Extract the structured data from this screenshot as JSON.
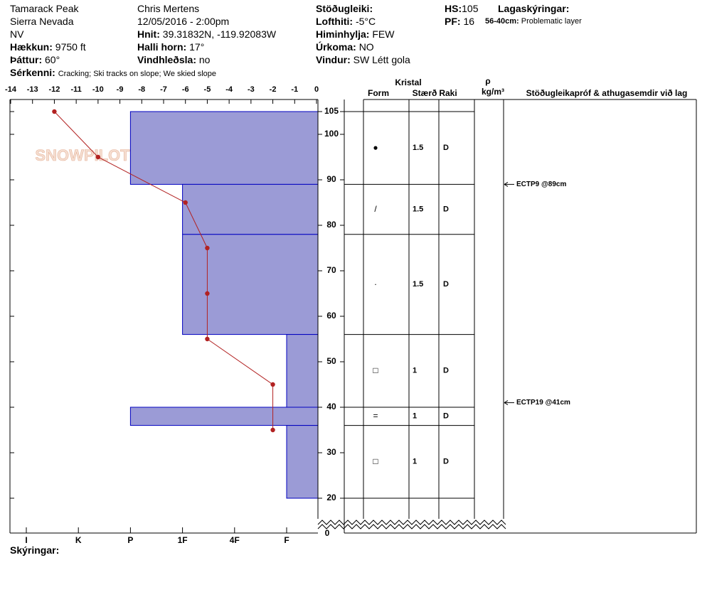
{
  "header": {
    "col1": [
      "Tamarack Peak",
      "Sierra Nevada",
      "NV"
    ],
    "elevation": {
      "label": "Hækkun:",
      "value": "9750 ft"
    },
    "aspect": {
      "label": "Þáttur:",
      "value": "60°"
    },
    "features": {
      "label": "Sérkenni:",
      "value": "Cracking;  Ski tracks on slope;  We skied slope"
    },
    "observer": "Chris Mertens",
    "datetime": "12/05/2016 - 2:00pm",
    "coords": {
      "label": "Hnit:",
      "value": "39.31832N, -119.92083W"
    },
    "slope": {
      "label": "Halli horn:",
      "value": "17°"
    },
    "wind_loading": {
      "label": "Vindhleðsla:",
      "value": "no"
    },
    "stability": {
      "label": "Stöðugleiki:"
    },
    "air_temp": {
      "label": "Lofthiti:",
      "value": "-5°C"
    },
    "sky": {
      "label": "Himinhylja:",
      "value": "FEW"
    },
    "precip": {
      "label": "Úrkoma:",
      "value": "NO"
    },
    "wind": {
      "label": "Vindur:",
      "value": "SW Létt gola"
    },
    "hs": {
      "label": "HS:",
      "value": "105"
    },
    "pf": {
      "label": "PF:",
      "value": "16"
    },
    "layer_notes_title": "Lagaskýringar:",
    "layer_note": {
      "label": "56-40cm:",
      "value": "Problematic layer"
    },
    "legend_label": "Skýringar:",
    "logo": "SNOWPILOT"
  },
  "chart_data": {
    "type": "snowprofile",
    "xlim": [
      -14,
      0
    ],
    "xticks": [
      -14,
      -13,
      -12,
      -11,
      -10,
      -9,
      -8,
      -7,
      -6,
      -5,
      -4,
      -3,
      -2,
      -1,
      0
    ],
    "ylim": [
      20,
      105
    ],
    "yticks": [
      105,
      100,
      90,
      80,
      70,
      60,
      50,
      40,
      30,
      20
    ],
    "y_break_tick": 0,
    "hardness_ticks": [
      "I",
      "K",
      "P",
      "1F",
      "4F",
      "F"
    ],
    "temperature": {
      "color": "#b22222",
      "depth": [
        105,
        95,
        85,
        75,
        65,
        55,
        45,
        35
      ],
      "values": [
        -12,
        -10,
        -6,
        -5,
        -5,
        -5,
        -2,
        -2
      ]
    },
    "layer_color": "#9b9bd6",
    "layers": [
      {
        "top": 105,
        "bottom": 89,
        "hardness": "P",
        "form": "●",
        "size": "1.5",
        "moisture": "D"
      },
      {
        "top": 89,
        "bottom": 78,
        "hardness": "1F",
        "form": "/",
        "size": "1.5",
        "moisture": "D"
      },
      {
        "top": 78,
        "bottom": 56,
        "hardness": "1F",
        "form": "·",
        "size": "1.5",
        "moisture": "D"
      },
      {
        "top": 56,
        "bottom": 40,
        "hardness": "F",
        "form": "□",
        "size": "1",
        "moisture": "D"
      },
      {
        "top": 40,
        "bottom": 36,
        "hardness": "P",
        "form": "=",
        "size": "1",
        "moisture": "D"
      },
      {
        "top": 36,
        "bottom": 20,
        "hardness": "F",
        "form": "□",
        "size": "1",
        "moisture": "D"
      }
    ],
    "table_headers": {
      "crystal": "Kristal",
      "form": "Form",
      "size": "Stærð",
      "moisture": "Raki",
      "density": "ρ",
      "density_unit": "kg/m³",
      "tests": "Stöðugleikapróf & athugasemdir við lag"
    },
    "tests": [
      {
        "depth": 89,
        "label": "ECTP9 @89cm"
      },
      {
        "depth": 41,
        "label": "ECTP19 @41cm"
      }
    ]
  }
}
